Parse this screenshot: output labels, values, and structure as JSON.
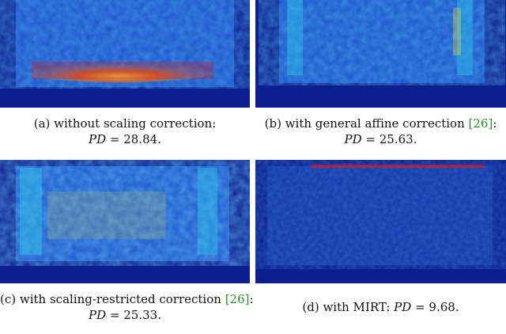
{
  "panels": [
    {
      "id": "a",
      "line1_prefix": "(a) without scaling correction:",
      "cite": "",
      "line1_suffix": "",
      "pd_label": "PD",
      "pd_equals": " = ",
      "pd_value": "28.84",
      "period": "."
    },
    {
      "id": "b",
      "line1_prefix": "(b) with general affine correction ",
      "cite": "[26]",
      "line1_suffix": ":",
      "pd_label": "PD",
      "pd_equals": " = ",
      "pd_value": "25.63",
      "period": "."
    },
    {
      "id": "c",
      "line1_prefix": "(c) with scaling-restricted correction ",
      "cite": "[26]",
      "line1_suffix": ":",
      "pd_label": "PD",
      "pd_equals": " = ",
      "pd_value": "25.33",
      "period": "."
    },
    {
      "id": "d",
      "line1_prefix": "(d) with MIRT: ",
      "cite": "",
      "line1_suffix": "",
      "pd_label": "PD",
      "pd_equals": " = ",
      "pd_value": "9.68",
      "period": "."
    }
  ],
  "colors": {
    "background_blue": "#0c1f8f",
    "mid_blue": "#1e5fd6",
    "cyan": "#2fc8e8",
    "yellow": "#f0e040",
    "red": "#d42020",
    "citation_green": "#2e8b2e"
  }
}
